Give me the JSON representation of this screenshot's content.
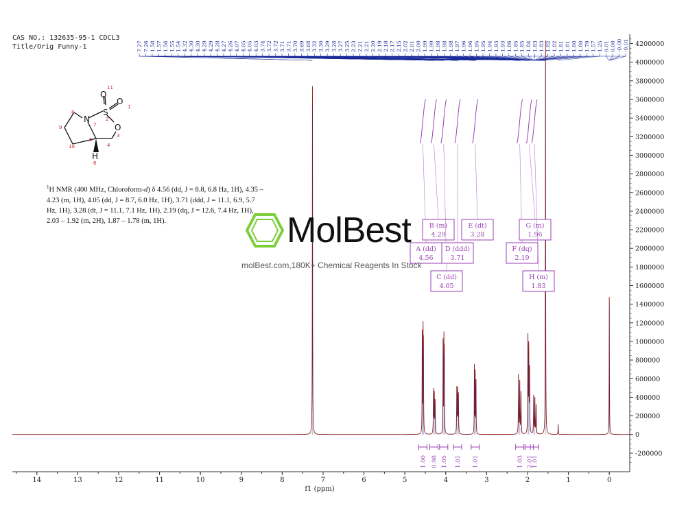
{
  "header": {
    "line1": "CAS NO.: 132635-95-1 CDCL3",
    "line2": "Title/Orig Funny-1"
  },
  "nmr_description": {
    "pre": "H NMR (400 MHz, Chloroform-",
    "solvent_d": "d",
    "post": ") δ 4.56 (dd, J = 8.8, 6.8 Hz, 1H), 4.35 – 4.23 (m, 1H), 4.05 (dd, J = 8.7, 6.0 Hz, 1H), 3.71 (ddd, J = 11.1, 6.9, 5.7 Hz, 1H), 3.28 (dt, J = 11.1, 7.1 Hz, 1H), 2.19 (dq, J = 12.6, 7.4 Hz, 1H), 2.03 – 1.92 (m, 2H), 1.87 – 1.78 (m, 1H).",
    "superscript": "1"
  },
  "watermark": {
    "brand": "MolBest",
    "tagline": "molBest.com,180K+ Chemical Reagents In Stock"
  },
  "structure": {
    "atoms": [
      "N",
      "S",
      "O",
      "O",
      "O",
      "H"
    ],
    "numbers": [
      "1",
      "2",
      "3",
      "4",
      "5",
      "6",
      "7",
      "8",
      "9",
      "10",
      "11"
    ]
  },
  "colors": {
    "spectrum": "#8b1a1a",
    "peak_list": "#1a2a99",
    "integral": "#9a3fb5",
    "axis": "#333333"
  },
  "chart_data": {
    "type": "line",
    "xlabel": "f1 (ppm)",
    "x_range": [
      14.6,
      -0.5
    ],
    "x_ticks": [
      "14",
      "13",
      "12",
      "11",
      "10",
      "9",
      "8",
      "7",
      "6",
      "5",
      "4",
      "3",
      "2",
      "1",
      "0"
    ],
    "y_range": [
      -400000,
      4300000
    ],
    "y_ticks": [
      "4200000",
      "4000000",
      "3800000",
      "3600000",
      "3400000",
      "3200000",
      "3000000",
      "2800000",
      "2600000",
      "2400000",
      "2200000",
      "2000000",
      "1800000",
      "1600000",
      "1400000",
      "1200000",
      "1000000",
      "800000",
      "600000",
      "400000",
      "200000",
      "0",
      "-200000"
    ],
    "peaks": [
      {
        "ppm": 7.26,
        "height": 3800000,
        "width": 0.004
      },
      {
        "ppm": 4.575,
        "height": 1090000,
        "width": 0.004
      },
      {
        "ppm": 4.555,
        "height": 1060000,
        "width": 0.004
      },
      {
        "ppm": 4.545,
        "height": 900000,
        "width": 0.004
      },
      {
        "ppm": 4.3,
        "height": 470000,
        "width": 0.005
      },
      {
        "ppm": 4.28,
        "height": 420000,
        "width": 0.005
      },
      {
        "ppm": 4.26,
        "height": 350000,
        "width": 0.005
      },
      {
        "ppm": 4.065,
        "height": 1000000,
        "width": 0.004
      },
      {
        "ppm": 4.045,
        "height": 960000,
        "width": 0.004
      },
      {
        "ppm": 4.035,
        "height": 820000,
        "width": 0.004
      },
      {
        "ppm": 3.73,
        "height": 490000,
        "width": 0.005
      },
      {
        "ppm": 3.71,
        "height": 460000,
        "width": 0.005
      },
      {
        "ppm": 3.69,
        "height": 420000,
        "width": 0.005
      },
      {
        "ppm": 3.3,
        "height": 740000,
        "width": 0.004
      },
      {
        "ppm": 3.28,
        "height": 660000,
        "width": 0.004
      },
      {
        "ppm": 3.26,
        "height": 560000,
        "width": 0.004
      },
      {
        "ppm": 2.22,
        "height": 640000,
        "width": 0.005
      },
      {
        "ppm": 2.19,
        "height": 560000,
        "width": 0.005
      },
      {
        "ppm": 2.16,
        "height": 450000,
        "width": 0.005
      },
      {
        "ppm": 1.99,
        "height": 1030000,
        "width": 0.005
      },
      {
        "ppm": 1.97,
        "height": 900000,
        "width": 0.005
      },
      {
        "ppm": 1.95,
        "height": 680000,
        "width": 0.005
      },
      {
        "ppm": 1.85,
        "height": 410000,
        "width": 0.005
      },
      {
        "ppm": 1.82,
        "height": 380000,
        "width": 0.005
      },
      {
        "ppm": 1.79,
        "height": 310000,
        "width": 0.005
      },
      {
        "ppm": 1.56,
        "height": 4300000,
        "width": 0.004
      },
      {
        "ppm": 1.25,
        "height": 110000,
        "width": 0.004
      },
      {
        "ppm": 0.0,
        "height": 1500000,
        "width": 0.004
      }
    ],
    "peak_list_labels": [
      "7.27",
      "7.26",
      "1.58",
      "1.57",
      "1.56",
      "1.55",
      "1.54",
      "4.32",
      "4.30",
      "4.30",
      "4.29",
      "4.29",
      "4.28",
      "4.27",
      "4.26",
      "4.07",
      "4.05",
      "4.05",
      "4.03",
      "3.74",
      "3.72",
      "3.72",
      "3.71",
      "3.71",
      "3.70",
      "3.69",
      "3.68",
      "3.32",
      "3.30",
      "3.29",
      "3.28",
      "3.27",
      "3.25",
      "2.23",
      "2.21",
      "2.21",
      "2.20",
      "2.19",
      "2.18",
      "2.17",
      "2.15",
      "2.02",
      "2.01",
      "2.00",
      "1.99",
      "1.99",
      "1.98",
      "1.98",
      "1.98",
      "1.97",
      "1.96",
      "1.96",
      "1.95",
      "1.95",
      "1.94",
      "1.93",
      "1.93",
      "1.86",
      "1.85",
      "1.85",
      "1.84",
      "1.83",
      "1.83",
      "1.82",
      "1.82",
      "1.81",
      "1.81",
      "1.80",
      "1.80",
      "1.79",
      "1.57",
      "1.25",
      "0.01",
      "0.00",
      "-0.00",
      "-0.01"
    ],
    "multiplets": [
      {
        "id": "A",
        "type": "dd",
        "shift": "4.56"
      },
      {
        "id": "B",
        "type": "m",
        "shift": "4.29"
      },
      {
        "id": "C",
        "type": "dd",
        "shift": "4.05"
      },
      {
        "id": "D",
        "type": "ddd",
        "shift": "3.71"
      },
      {
        "id": "E",
        "type": "dt",
        "shift": "3.28"
      },
      {
        "id": "F",
        "type": "dq",
        "shift": "2.19"
      },
      {
        "id": "G",
        "type": "m",
        "shift": "1.96"
      },
      {
        "id": "H",
        "type": "m",
        "shift": "1.83"
      }
    ],
    "integrals": [
      {
        "ppm": 4.56,
        "value": "1.00"
      },
      {
        "ppm": 4.29,
        "value": "0.98"
      },
      {
        "ppm": 4.05,
        "value": "1.05"
      },
      {
        "ppm": 3.71,
        "value": "1.01"
      },
      {
        "ppm": 3.28,
        "value": "1.01"
      },
      {
        "ppm": 2.19,
        "value": "1.03"
      },
      {
        "ppm": 1.96,
        "value": "2.01"
      },
      {
        "ppm": 1.83,
        "value": "1.01"
      }
    ]
  }
}
